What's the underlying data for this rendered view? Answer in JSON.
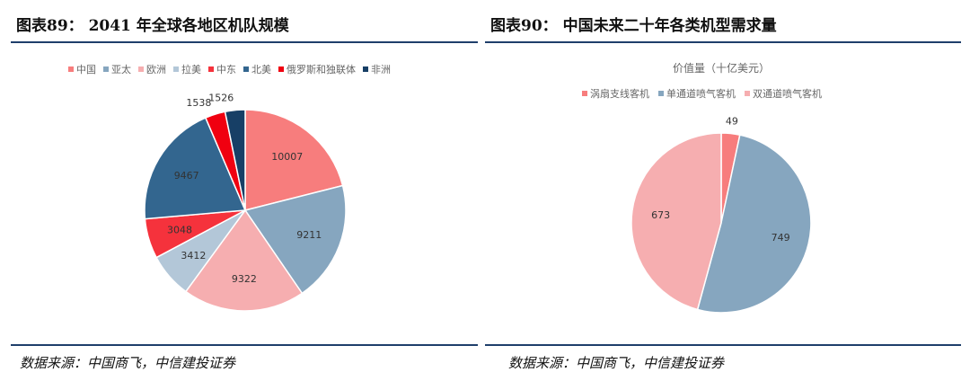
{
  "left": {
    "figure_title": "图表89：  2041 年全球各地区机队规模",
    "source": "数据来源：中国商飞，中信建投证券"
  },
  "right": {
    "figure_title": "图表90：  中国未来二十年各类机型需求量",
    "source": "数据来源：中国商飞，中信建投证券"
  },
  "chart_data": [
    {
      "type": "pie",
      "title": "",
      "legend_position": "top",
      "categories": [
        "中国",
        "亚太",
        "欧洲",
        "拉美",
        "中东",
        "北美",
        "俄罗斯和独联体",
        "非洲"
      ],
      "values": [
        10007,
        9211,
        9322,
        3412,
        3048,
        9467,
        1538,
        1526
      ],
      "colors": [
        "#f77d7d",
        "#86a6bf",
        "#f6aeb0",
        "#b3c7d8",
        "#f5323c",
        "#33668f",
        "#f00010",
        "#173f66"
      ]
    },
    {
      "type": "pie",
      "title": "价值量（十亿美元）",
      "legend_position": "top",
      "categories": [
        "涡扇支线客机",
        "单通道喷气客机",
        "双通道喷气客机"
      ],
      "values": [
        49,
        749,
        673
      ],
      "colors": [
        "#f77d7d",
        "#86a6bf",
        "#f6aeb0"
      ]
    }
  ]
}
